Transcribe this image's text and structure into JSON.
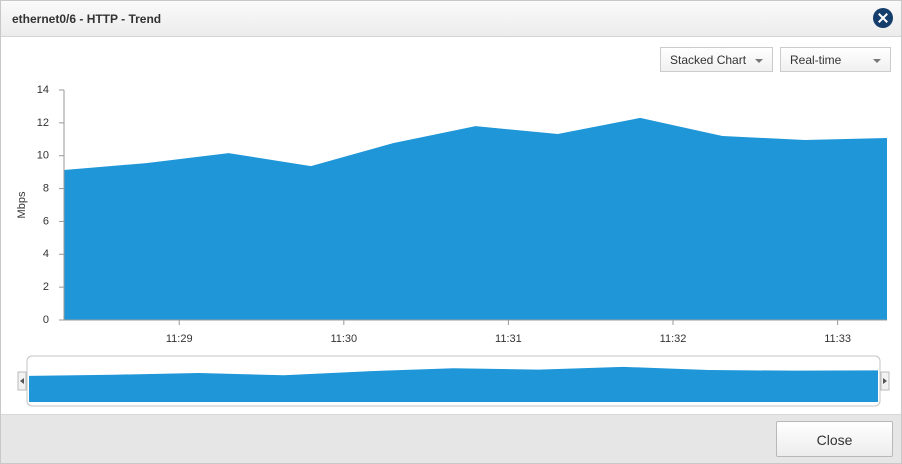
{
  "dialog": {
    "title": "ethernet0/6 - HTTP - Trend",
    "chart_mode": "Stacked Chart",
    "time_range": "Real-time",
    "close_button": "Close"
  },
  "chart_data": {
    "type": "area",
    "y_label": "Mbps",
    "color": "#1e96d8",
    "x": [
      688.3,
      688.8,
      689.3,
      689.8,
      690.3,
      690.8,
      691.3,
      691.8,
      692.3,
      692.8,
      693.3
    ],
    "values": [
      9.13,
      9.55,
      10.16,
      9.37,
      10.77,
      11.8,
      11.32,
      12.3,
      11.2,
      10.96,
      11.08
    ],
    "xlim": [
      688.3,
      693.3
    ],
    "xticks": [
      {
        "value": 689,
        "label": "11:29"
      },
      {
        "value": 690,
        "label": "11:30"
      },
      {
        "value": 691,
        "label": "11:31"
      },
      {
        "value": 692,
        "label": "11:32"
      },
      {
        "value": 693,
        "label": "11:33"
      }
    ],
    "ylim": [
      0,
      14
    ],
    "yticks": [
      0,
      2,
      4,
      6,
      8,
      10,
      12,
      14
    ],
    "grid": false
  }
}
